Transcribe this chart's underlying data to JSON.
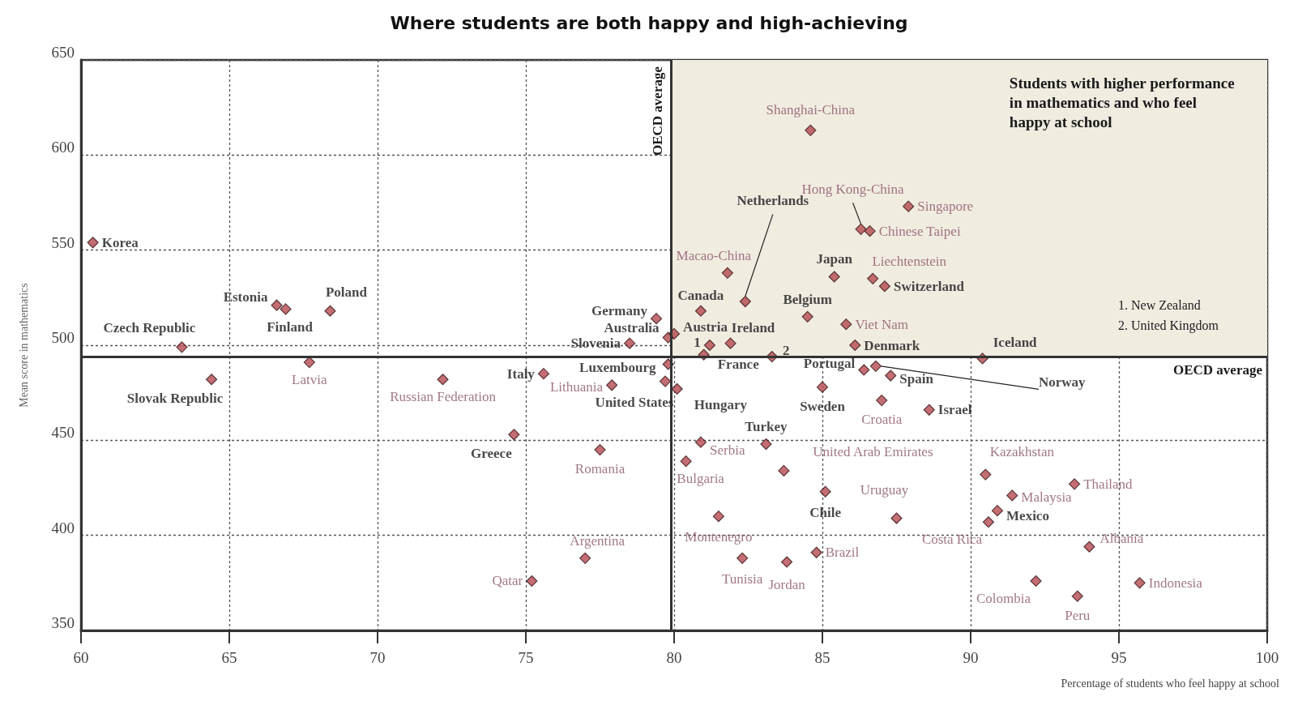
{
  "chart_data": {
    "type": "scatter",
    "title": "Where students are both happy and high-achieving",
    "xlabel": "Percentage of students who feel happy at school",
    "ylabel": "Mean score in mathematics",
    "xlim": [
      60,
      100
    ],
    "xticks": [
      60,
      65,
      70,
      75,
      80,
      85,
      90,
      95,
      100
    ],
    "ylim": [
      350,
      650
    ],
    "yticks": [
      350,
      400,
      450,
      500,
      550,
      600,
      650
    ],
    "grid": true,
    "marker": "diamond",
    "series": [
      {
        "color": "#b5484f",
        "x": [
          60.4,
          63.4,
          64.4,
          66.6,
          66.9,
          68.4,
          74.6,
          75.6,
          78.5,
          79.8,
          79.7,
          79.8,
          79.4,
          80.0,
          82.4,
          80.9,
          81.9,
          81.2,
          81.0,
          83.3,
          80.1,
          84.5,
          85.4,
          87.1,
          86.1,
          86.4,
          85.0,
          86.8,
          87.3,
          90.4,
          88.6,
          83.1,
          85.1,
          90.9
        ],
        "values": [
          554,
          499,
          482,
          521,
          519,
          518,
          453,
          485,
          501,
          490,
          481,
          504,
          514,
          506,
          523,
          518,
          501,
          500,
          495,
          494,
          477,
          515,
          536,
          531,
          500,
          487,
          478,
          489,
          484,
          493,
          466,
          448,
          423,
          413
        ]
      },
      {
        "color": "#b5484f",
        "x": [
          67.7,
          72.2,
          77.9,
          77.5,
          77.0,
          75.2,
          84.6,
          81.8,
          86.3,
          87.9,
          86.6,
          86.7,
          85.8,
          87.0,
          80.9,
          80.4,
          83.7,
          81.5,
          82.3,
          83.8,
          84.8,
          87.5,
          90.5,
          93.5,
          91.4,
          90.6,
          94.0,
          92.2,
          93.6,
          95.7
        ],
        "values": [
          491,
          482,
          479,
          445,
          388,
          376,
          613,
          538,
          561,
          573,
          560,
          535,
          511,
          471,
          449,
          439,
          434,
          410,
          388,
          386,
          391,
          409,
          432,
          427,
          421,
          407,
          394,
          376,
          368,
          375
        ]
      }
    ],
    "ref_lines": [
      {
        "axis": "y",
        "value": 494,
        "label": "OECD average",
        "color": "#333333"
      },
      {
        "axis": "x",
        "value": 79.9,
        "label": "OECD average",
        "color": "#333333"
      }
    ],
    "bands": [
      {
        "axis": "x",
        "from": 79.9,
        "to": 100,
        "color": "#f1ece0"
      }
    ],
    "annotations": [
      {
        "text": "Korea",
        "x": 60.4,
        "y": 554
      },
      {
        "text": "Czech Republic",
        "x": 63.4,
        "y": 499
      },
      {
        "text": "Slovak Republic",
        "x": 64.4,
        "y": 482
      },
      {
        "text": "Estonia",
        "x": 66.6,
        "y": 521
      },
      {
        "text": "Finland",
        "x": 66.9,
        "y": 519
      },
      {
        "text": "Poland",
        "x": 68.4,
        "y": 518
      },
      {
        "text": "Greece",
        "x": 74.6,
        "y": 453
      },
      {
        "text": "Italy",
        "x": 75.6,
        "y": 485
      },
      {
        "text": "Slovenia",
        "x": 78.5,
        "y": 501
      },
      {
        "text": "Luxembourg",
        "x": 79.8,
        "y": 490
      },
      {
        "text": "United States",
        "x": 79.7,
        "y": 481
      },
      {
        "text": "Australia",
        "x": 79.8,
        "y": 504
      },
      {
        "text": "Germany",
        "x": 79.4,
        "y": 514
      },
      {
        "text": "Austria",
        "x": 80.0,
        "y": 506
      },
      {
        "text": "Netherlands",
        "x": 82.4,
        "y": 523
      },
      {
        "text": "Canada",
        "x": 80.9,
        "y": 518
      },
      {
        "text": "Ireland",
        "x": 81.9,
        "y": 501
      },
      {
        "text": "1",
        "x": 81.2,
        "y": 500
      },
      {
        "text": "France",
        "x": 81.0,
        "y": 495
      },
      {
        "text": "2",
        "x": 83.3,
        "y": 494
      },
      {
        "text": "Hungary",
        "x": 80.1,
        "y": 477
      },
      {
        "text": "Belgium",
        "x": 84.5,
        "y": 515
      },
      {
        "text": "Japan",
        "x": 85.4,
        "y": 536
      },
      {
        "text": "Switzerland",
        "x": 87.1,
        "y": 531
      },
      {
        "text": "Denmark",
        "x": 86.1,
        "y": 500
      },
      {
        "text": "Portugal",
        "x": 86.4,
        "y": 487
      },
      {
        "text": "Sweden",
        "x": 85.0,
        "y": 478
      },
      {
        "text": "Norway",
        "x": 86.8,
        "y": 489
      },
      {
        "text": "Spain",
        "x": 87.3,
        "y": 484
      },
      {
        "text": "Iceland",
        "x": 90.4,
        "y": 493
      },
      {
        "text": "Israel",
        "x": 88.6,
        "y": 466
      },
      {
        "text": "Turkey",
        "x": 83.1,
        "y": 448
      },
      {
        "text": "Chile",
        "x": 85.1,
        "y": 423
      },
      {
        "text": "Mexico",
        "x": 90.9,
        "y": 413
      },
      {
        "text": "Latvia",
        "x": 67.7,
        "y": 491
      },
      {
        "text": "Russian Federation",
        "x": 72.2,
        "y": 482
      },
      {
        "text": "Lithuania",
        "x": 77.9,
        "y": 479
      },
      {
        "text": "Romania",
        "x": 77.5,
        "y": 445
      },
      {
        "text": "Argentina",
        "x": 77.0,
        "y": 388
      },
      {
        "text": "Qatar",
        "x": 75.2,
        "y": 376
      },
      {
        "text": "Shanghai-China",
        "x": 84.6,
        "y": 613
      },
      {
        "text": "Macao-China",
        "x": 81.8,
        "y": 538
      },
      {
        "text": "Hong Kong-China",
        "x": 86.3,
        "y": 561
      },
      {
        "text": "Singapore",
        "x": 87.9,
        "y": 573
      },
      {
        "text": "Chinese Taipei",
        "x": 86.6,
        "y": 560
      },
      {
        "text": "Liechtenstein",
        "x": 86.7,
        "y": 535
      },
      {
        "text": "Viet Nam",
        "x": 85.8,
        "y": 511
      },
      {
        "text": "Croatia",
        "x": 87.0,
        "y": 471
      },
      {
        "text": "Serbia",
        "x": 80.9,
        "y": 449
      },
      {
        "text": "Bulgaria",
        "x": 80.4,
        "y": 439
      },
      {
        "text": "United Arab Emirates",
        "x": 83.7,
        "y": 434
      },
      {
        "text": "Montenegro",
        "x": 81.5,
        "y": 410
      },
      {
        "text": "Tunisia",
        "x": 82.3,
        "y": 388
      },
      {
        "text": "Jordan",
        "x": 83.8,
        "y": 386
      },
      {
        "text": "Brazil",
        "x": 84.8,
        "y": 391
      },
      {
        "text": "Uruguay",
        "x": 87.5,
        "y": 409
      },
      {
        "text": "Kazakhstan",
        "x": 90.5,
        "y": 432
      },
      {
        "text": "Thailand",
        "x": 93.5,
        "y": 427
      },
      {
        "text": "Malaysia",
        "x": 91.4,
        "y": 421
      },
      {
        "text": "Costa Rica",
        "x": 90.6,
        "y": 407
      },
      {
        "text": "Albania",
        "x": 94.0,
        "y": 394
      },
      {
        "text": "Colombia",
        "x": 92.2,
        "y": 376
      },
      {
        "text": "Peru",
        "x": 93.6,
        "y": 368
      },
      {
        "text": "Indonesia",
        "x": 95.7,
        "y": 375
      },
      "Students with higher performance\nin mathematics and who feel\nhappy at school",
      "1. New Zealand\n2. United Kingdom"
    ]
  }
}
